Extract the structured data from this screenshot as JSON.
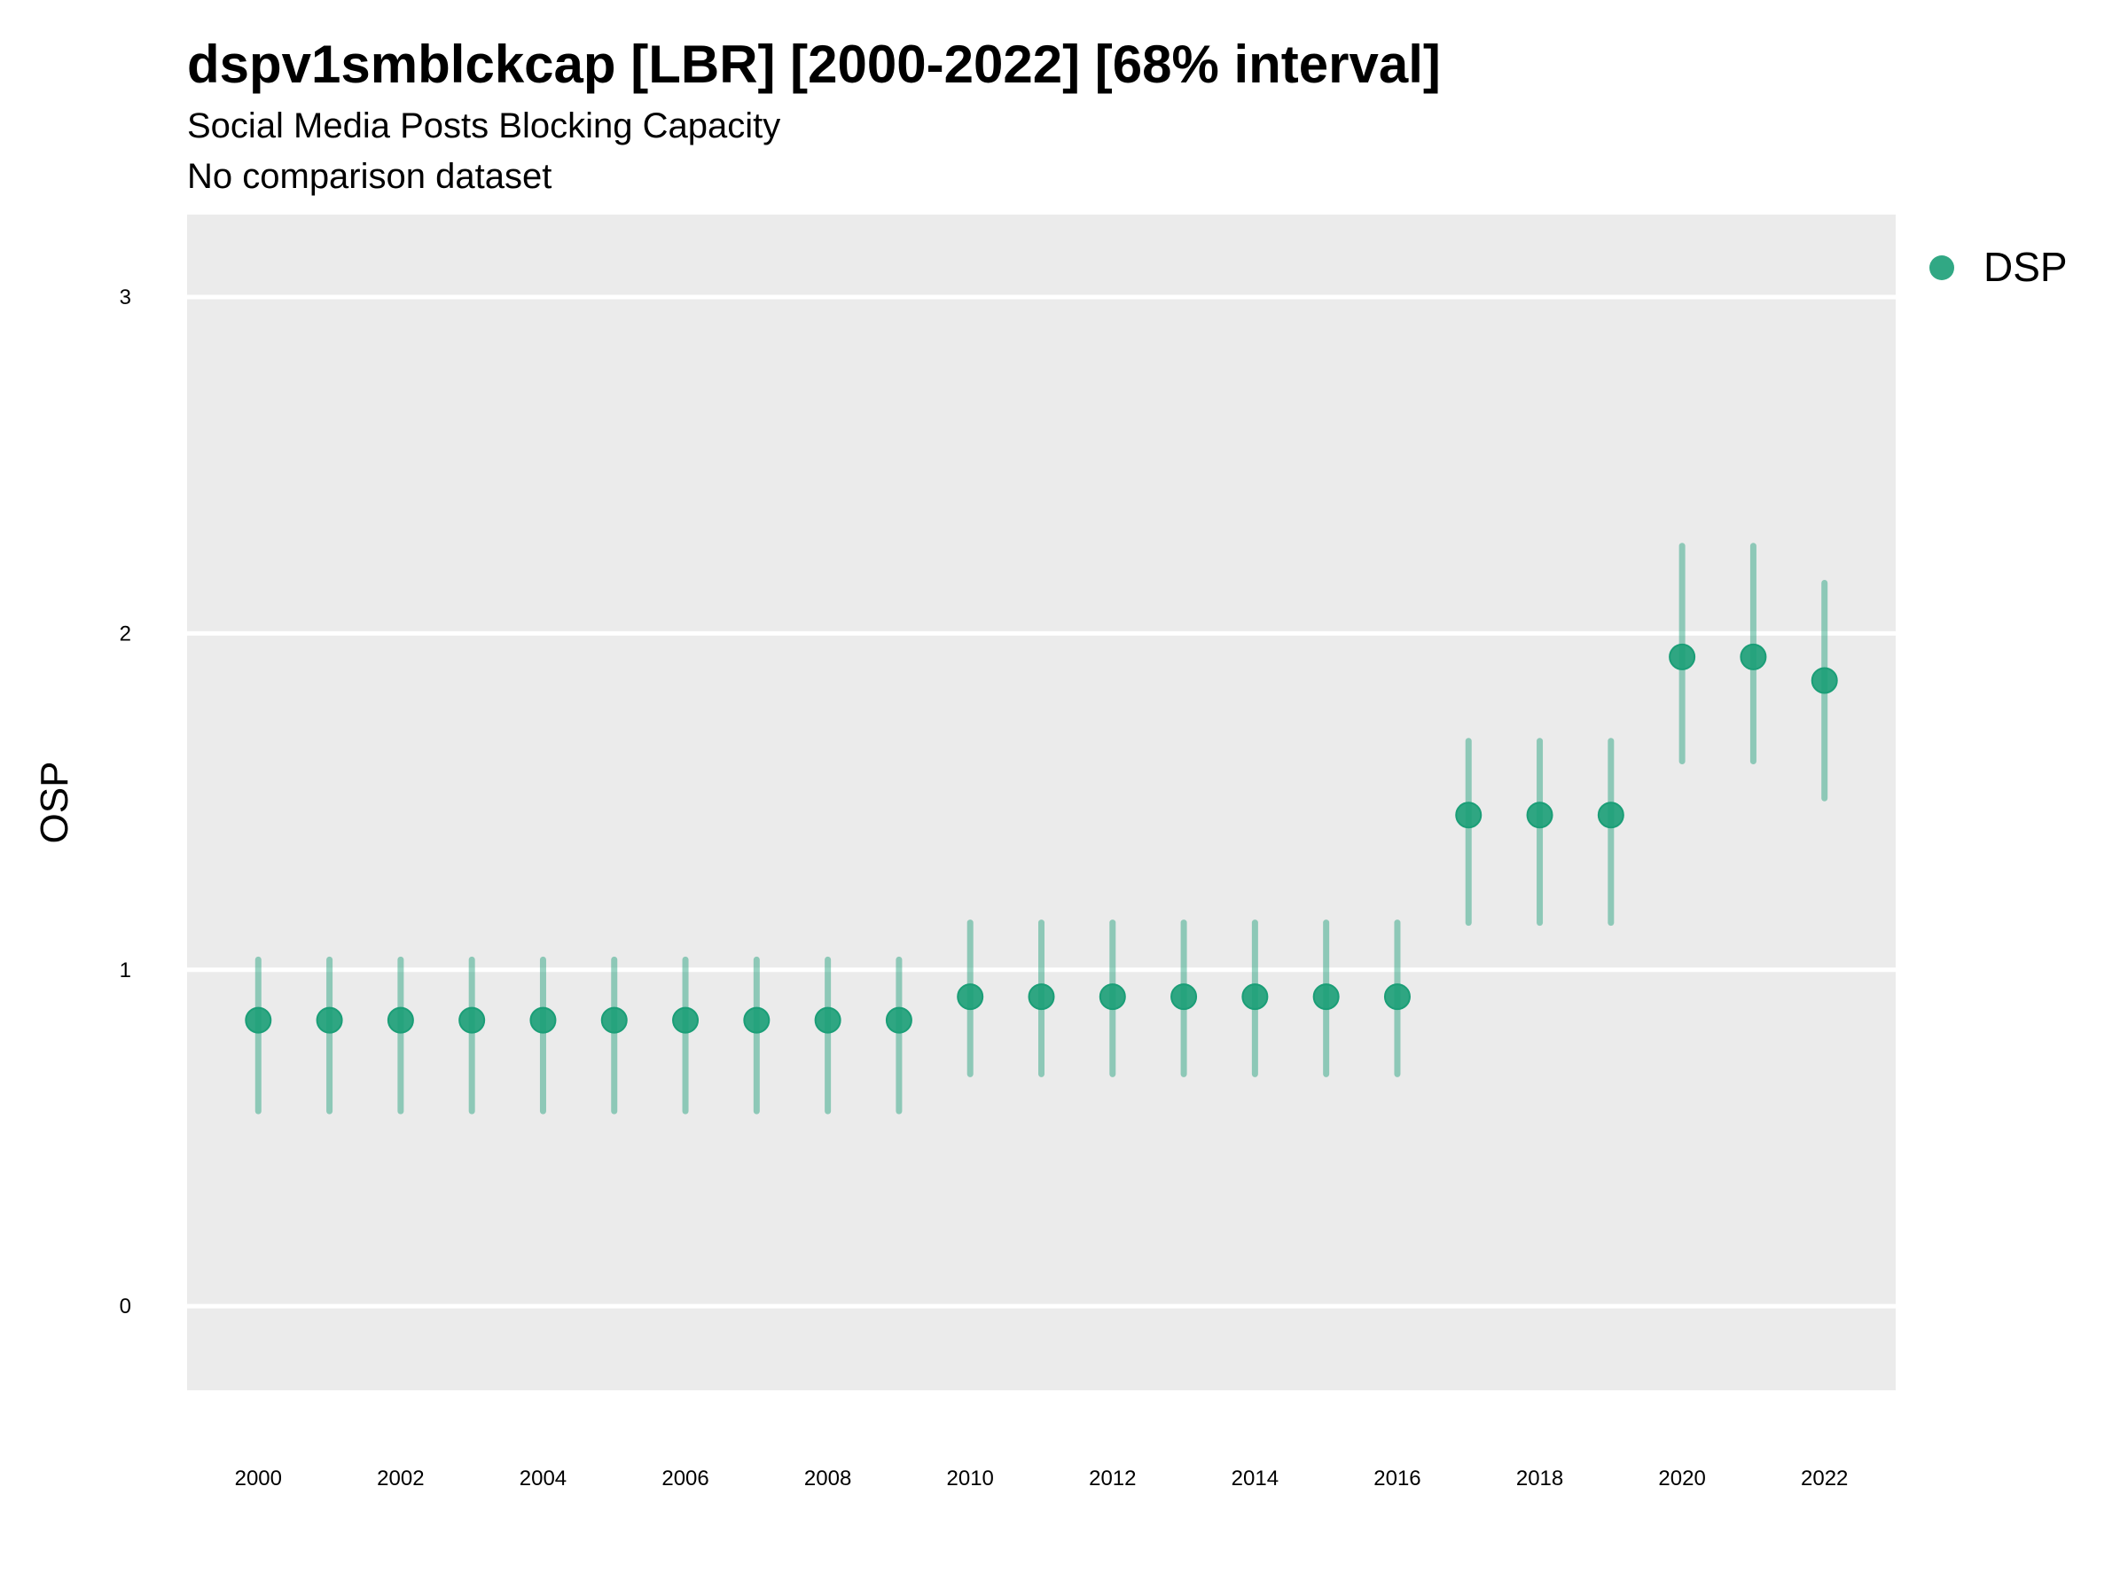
{
  "chart_data": {
    "type": "scatter",
    "title": "dspv1smblckcap [LBR] [2000-2022] [68% interval]",
    "subtitle": "Social Media Posts Blocking Capacity",
    "caption": "No comparison dataset",
    "xlabel": "",
    "ylabel": "OSP",
    "xlim": [
      1999,
      2023
    ],
    "ylim": [
      -0.25,
      3.245
    ],
    "grid": true,
    "legend_position": "top-right",
    "x_ticks": [
      2000,
      2002,
      2004,
      2006,
      2008,
      2010,
      2012,
      2014,
      2016,
      2018,
      2020,
      2022
    ],
    "y_ticks": [
      0,
      1,
      2,
      3
    ],
    "colors": {
      "point": "#1b9e77",
      "panel": "#ebebeb",
      "grid": "#ffffff"
    },
    "series": [
      {
        "name": "DSP",
        "x": [
          2000,
          2001,
          2002,
          2003,
          2004,
          2005,
          2006,
          2007,
          2008,
          2009,
          2010,
          2011,
          2012,
          2013,
          2014,
          2015,
          2016,
          2017,
          2018,
          2019,
          2020,
          2021,
          2022
        ],
        "y": [
          0.85,
          0.85,
          0.85,
          0.85,
          0.85,
          0.85,
          0.85,
          0.85,
          0.85,
          0.85,
          0.92,
          0.92,
          0.92,
          0.92,
          0.92,
          0.92,
          0.92,
          1.46,
          1.46,
          1.46,
          1.93,
          1.93,
          1.86
        ],
        "lower": [
          0.58,
          0.58,
          0.58,
          0.58,
          0.58,
          0.58,
          0.58,
          0.58,
          0.58,
          0.58,
          0.69,
          0.69,
          0.69,
          0.69,
          0.69,
          0.69,
          0.69,
          1.14,
          1.14,
          1.14,
          1.62,
          1.62,
          1.51
        ],
        "upper": [
          1.03,
          1.03,
          1.03,
          1.03,
          1.03,
          1.03,
          1.03,
          1.03,
          1.03,
          1.03,
          1.14,
          1.14,
          1.14,
          1.14,
          1.14,
          1.14,
          1.14,
          1.68,
          1.68,
          1.68,
          2.26,
          2.26,
          2.15
        ]
      }
    ]
  }
}
